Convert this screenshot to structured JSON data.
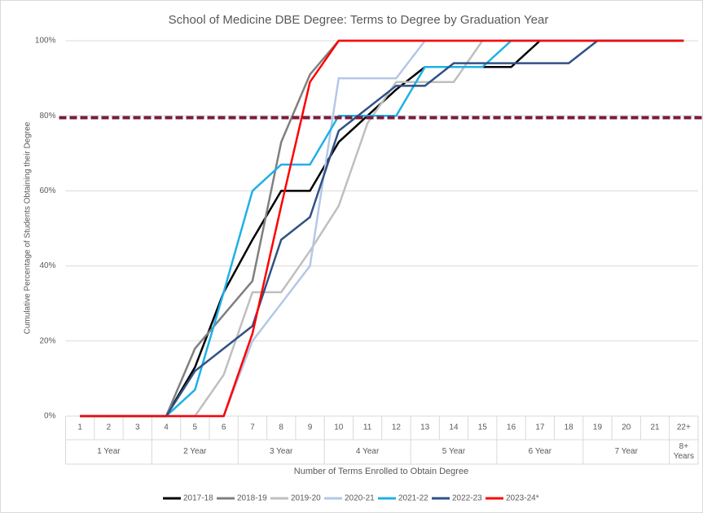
{
  "chart_data": {
    "type": "line",
    "title": "School of Medicine DBE Degree: Terms to Degree by Graduation Year",
    "y_label": "Cumulative Percentage of Students Obtaining their Degree",
    "x_label": "Number of Terms Enrolled to Obtain Degree",
    "categories": [
      "1",
      "2",
      "3",
      "4",
      "5",
      "6",
      "7",
      "8",
      "9",
      "10",
      "11",
      "12",
      "13",
      "14",
      "15",
      "16",
      "17",
      "18",
      "19",
      "20",
      "21",
      "22+"
    ],
    "groups": [
      "1 Year",
      "2 Year",
      "3 Year",
      "4 Year",
      "5 Year",
      "6 Year",
      "7 Year",
      "8+ Years"
    ],
    "ylim": [
      0,
      100
    ],
    "yticks": [
      {
        "value": 0,
        "label": "0%"
      },
      {
        "value": 20,
        "label": "20%"
      },
      {
        "value": 40,
        "label": "40%"
      },
      {
        "value": 60,
        "label": "60%"
      },
      {
        "value": 80,
        "label": "80%"
      },
      {
        "value": 100,
        "label": "100%"
      }
    ],
    "grid": true,
    "reference_line": {
      "value": 79.5,
      "color": "#7b1b3c"
    },
    "series": [
      {
        "name": "2017-18",
        "color": "#000000",
        "values": [
          0,
          0,
          0,
          0,
          13,
          33,
          47,
          60,
          60,
          73,
          80,
          87,
          93,
          93,
          93,
          93,
          100,
          100,
          100,
          100,
          100,
          100
        ]
      },
      {
        "name": "2018-19",
        "color": "#7f7f7f",
        "values": [
          0,
          0,
          0,
          0,
          18,
          27,
          36,
          73,
          91,
          100,
          100,
          100,
          100,
          100,
          100,
          100,
          100,
          100,
          100,
          100,
          100,
          100
        ]
      },
      {
        "name": "2019-20",
        "color": "#bfbfbf",
        "values": [
          0,
          0,
          0,
          0,
          0,
          11,
          33,
          33,
          44,
          56,
          78,
          89,
          89,
          89,
          100,
          100,
          100,
          100,
          100,
          100,
          100,
          100
        ]
      },
      {
        "name": "2020-21",
        "color": "#b4c7e7",
        "values": [
          0,
          0,
          0,
          0,
          0,
          0,
          20,
          30,
          40,
          90,
          90,
          90,
          100,
          100,
          100,
          100,
          100,
          100,
          100,
          100,
          100,
          100
        ]
      },
      {
        "name": "2021-22",
        "color": "#1fb0e6",
        "values": [
          0,
          0,
          0,
          0,
          7,
          33,
          60,
          67,
          67,
          80,
          80,
          80,
          93,
          93,
          93,
          100,
          100,
          100,
          100,
          100,
          100,
          100
        ]
      },
      {
        "name": "2022-23",
        "color": "#2f5286",
        "values": [
          0,
          0,
          0,
          0,
          12,
          18,
          24,
          47,
          53,
          76,
          82,
          88,
          88,
          94,
          94,
          94,
          94,
          94,
          100,
          100,
          100,
          100
        ]
      },
      {
        "name": "2023-24*",
        "color": "#ff0000",
        "values": [
          0,
          0,
          0,
          0,
          0,
          0,
          22,
          56,
          89,
          100,
          100,
          100,
          100,
          100,
          100,
          100,
          100,
          100,
          100,
          100,
          100,
          100
        ]
      }
    ]
  }
}
